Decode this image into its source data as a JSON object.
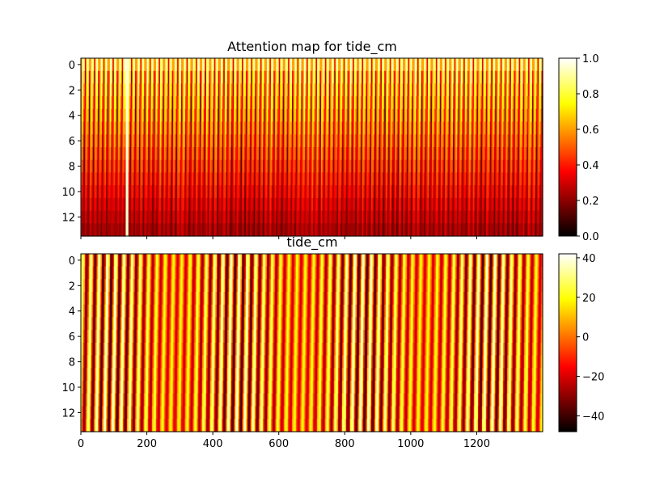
{
  "chart_data": [
    {
      "type": "heatmap",
      "title": "Attention map for tide_cm",
      "xlabel": "",
      "ylabel": "",
      "xlim": [
        0,
        1400
      ],
      "ylim": [
        13.5,
        -0.5
      ],
      "x_ticks_shared": [
        0,
        200,
        400,
        600,
        800,
        1000,
        1200
      ],
      "y_ticks": [
        "0",
        "2",
        "4",
        "6",
        "8",
        "10",
        "12"
      ],
      "rows": 14,
      "columns": 1400,
      "colormap": "hot",
      "colorbar": {
        "min": 0.0,
        "max": 1.0,
        "ticks": [
          "0.0",
          "0.2",
          "0.4",
          "0.6",
          "0.8",
          "1.0"
        ]
      },
      "pattern": "vertical oscillating stripes, brighter (0.6-1.0) in rows 0-3, darker (0.0-0.3) in rows 9-13, bright streak near x=140"
    },
    {
      "type": "heatmap",
      "title": "tide_cm",
      "xlabel": "",
      "ylabel": "",
      "xlim": [
        0,
        1400
      ],
      "ylim": [
        13.5,
        -0.5
      ],
      "x_ticks": [
        "0",
        "200",
        "400",
        "600",
        "800",
        "1000",
        "1200"
      ],
      "y_ticks": [
        "0",
        "2",
        "4",
        "6",
        "8",
        "10",
        "12"
      ],
      "rows": 14,
      "columns": 1400,
      "colormap": "hot",
      "colorbar": {
        "min": -48,
        "max": 42,
        "ticks": [
          "40",
          "20",
          "0",
          "−20",
          "−40"
        ]
      },
      "pattern": "tidal signal with ~25-step period, slightly slanted vertical stripes, amplitude roughly -48 to 42"
    }
  ]
}
